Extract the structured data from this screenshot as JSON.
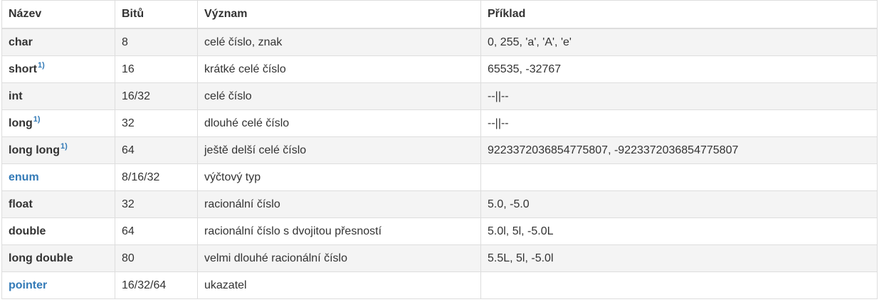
{
  "headers": [
    "Název",
    "Bitů",
    "Význam",
    "Příklad"
  ],
  "rows": [
    {
      "name": "char",
      "bits": "8",
      "meaning": "celé číslo, znak",
      "example": "0, 255, 'a', 'A', 'e'",
      "footnote": "",
      "link": false
    },
    {
      "name": "short",
      "bits": "16",
      "meaning": "krátké celé číslo",
      "example": "65535, -32767",
      "footnote": "1)",
      "link": false
    },
    {
      "name": "int",
      "bits": "16/32",
      "meaning": "celé číslo",
      "example": "--||--",
      "footnote": "",
      "link": false
    },
    {
      "name": "long",
      "bits": "32",
      "meaning": "dlouhé celé číslo",
      "example": "--||--",
      "footnote": "1)",
      "link": false
    },
    {
      "name": "long long",
      "bits": "64",
      "meaning": "ještě delší celé číslo",
      "example": "9223372036854775807, -9223372036854775807",
      "footnote": "1)",
      "link": false
    },
    {
      "name": "enum",
      "bits": "8/16/32",
      "meaning": "výčtový typ",
      "example": "",
      "footnote": "",
      "link": true
    },
    {
      "name": "float",
      "bits": "32",
      "meaning": "racionální číslo",
      "example": "5.0, -5.0",
      "footnote": "",
      "link": false
    },
    {
      "name": "double",
      "bits": "64",
      "meaning": "racionální číslo s dvojitou přesností",
      "example": "5.0l, 5l, -5.0L",
      "footnote": "",
      "link": false
    },
    {
      "name": "long double",
      "bits": "80",
      "meaning": "velmi dlouhé racionální číslo",
      "example": "5.5L, 5l, -5.0l",
      "footnote": "",
      "link": false
    },
    {
      "name": "pointer",
      "bits": "16/32/64",
      "meaning": "ukazatel",
      "example": "",
      "footnote": "",
      "link": true
    }
  ]
}
